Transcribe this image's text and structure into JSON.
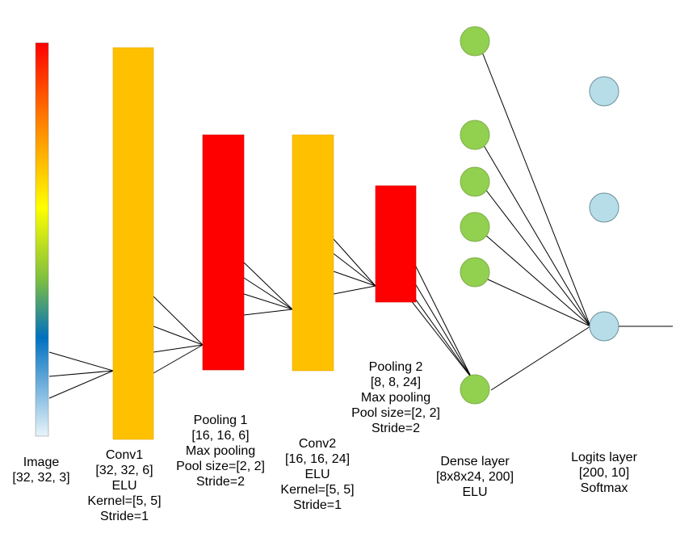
{
  "colors": {
    "conv": "#FFC000",
    "pool": "#FF0000",
    "dense_node": "#92D050",
    "logit_node": "#B7DEE8",
    "node_stroke": "#6b8e9b",
    "line": "#000000",
    "image_gradient": [
      "#FF0000",
      "#FF8000",
      "#FFFF00",
      "#7FBF3F",
      "#0070C0",
      "#E8F4FA"
    ]
  },
  "labels": {
    "image": [
      "Image",
      "[32, 32, 3]"
    ],
    "conv1": [
      "Conv1",
      "[32, 32, 6]",
      "ELU",
      "Kernel=[5, 5]",
      "Stride=1"
    ],
    "pool1": [
      "Pooling 1",
      "[16, 16, 6]",
      "Max pooling",
      "Pool size=[2, 2]",
      "Stride=2"
    ],
    "conv2": [
      "Conv2",
      "[16, 16, 24]",
      "ELU",
      "Kernel=[5, 5]",
      "Stride=1"
    ],
    "pool2": [
      "Pooling 2",
      "[8, 8, 24]",
      "Max pooling",
      "Pool size=[2, 2]",
      "Stride=2"
    ],
    "dense": [
      "Dense layer",
      "[8x8x24, 200]",
      "ELU"
    ],
    "logits": [
      "Logits layer",
      "[200, 10]",
      "Softmax"
    ]
  }
}
